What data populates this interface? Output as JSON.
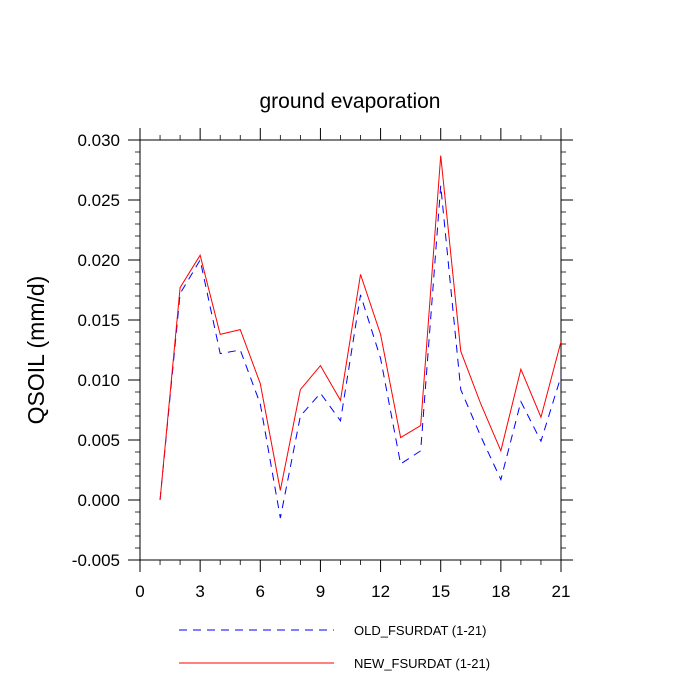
{
  "chart_data": {
    "type": "line",
    "title": "ground evaporation",
    "xlabel": "",
    "ylabel": "QSOIL  (mm/d)",
    "xlim": [
      0,
      21
    ],
    "ylim": [
      -0.005,
      0.03
    ],
    "xticks": [
      0,
      3,
      6,
      9,
      12,
      15,
      18,
      21
    ],
    "xtick_labels": [
      "0",
      "3",
      "6",
      "9",
      "12",
      "15",
      "18",
      "21"
    ],
    "yticks": [
      -0.005,
      0.0,
      0.005,
      0.01,
      0.015,
      0.02,
      0.025,
      0.03
    ],
    "ytick_labels": [
      "-0.005",
      "0.000",
      "0.005",
      "0.010",
      "0.015",
      "0.020",
      "0.025",
      "0.030"
    ],
    "grid": false,
    "legend_position": "bottom",
    "x": [
      1,
      2,
      3,
      4,
      5,
      6,
      7,
      8,
      9,
      10,
      11,
      12,
      13,
      14,
      15,
      16,
      17,
      18,
      19,
      20,
      21
    ],
    "series": [
      {
        "name": "OLD_FSURDAT (1-21)",
        "color": "#0000ff",
        "style": "dashed",
        "values": [
          0.0,
          0.0172,
          0.02,
          0.0122,
          0.0125,
          0.008,
          -0.0015,
          0.007,
          0.0089,
          0.0066,
          0.0171,
          0.0118,
          0.003,
          0.0041,
          0.0262,
          0.0092,
          0.0053,
          0.0017,
          0.0082,
          0.0049,
          0.0103
        ]
      },
      {
        "name": "NEW_FSURDAT (1-21)",
        "color": "#ff0000",
        "style": "solid",
        "values": [
          0.0,
          0.0177,
          0.0204,
          0.0138,
          0.0142,
          0.0097,
          0.0008,
          0.0092,
          0.0112,
          0.0083,
          0.0188,
          0.0138,
          0.0052,
          0.0062,
          0.0287,
          0.0124,
          0.008,
          0.0041,
          0.0109,
          0.0069,
          0.0132
        ]
      }
    ]
  }
}
